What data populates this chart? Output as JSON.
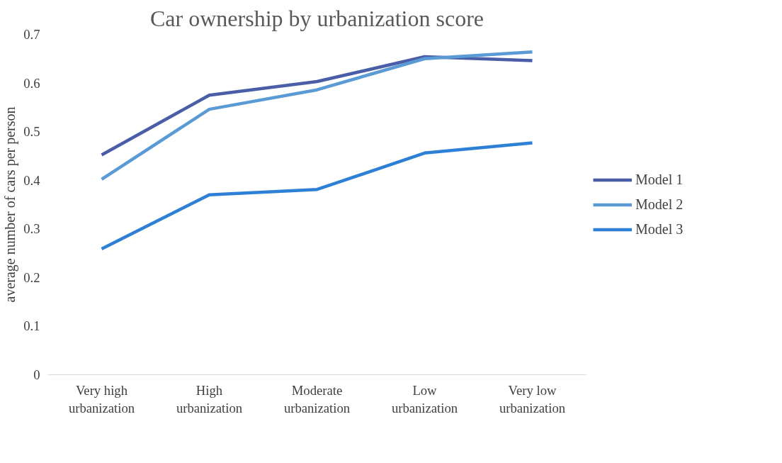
{
  "chart_data": {
    "type": "line",
    "title": "Car ownership by urbanization score",
    "ylabel": "average number of cars per person",
    "categories": [
      "Very high\nurbanization",
      "High\nurbanization",
      "Moderate\nurbanization",
      "Low\nurbanization",
      "Very low\nurbanization"
    ],
    "series": [
      {
        "name": "Model 1",
        "color": "#4a5ea8",
        "values": [
          0.452,
          0.575,
          0.603,
          0.654,
          0.646
        ]
      },
      {
        "name": "Model 2",
        "color": "#5b9bd5",
        "values": [
          0.402,
          0.546,
          0.586,
          0.65,
          0.664
        ]
      },
      {
        "name": "Model 3",
        "color": "#2e80d6",
        "values": [
          0.259,
          0.37,
          0.381,
          0.456,
          0.477
        ]
      }
    ],
    "ylim": [
      0,
      0.7
    ],
    "yticks": [
      0,
      0.1,
      0.2,
      0.3,
      0.4,
      0.5,
      0.6,
      0.7
    ],
    "grid": false,
    "legend": "right",
    "marker": "none",
    "line_style": "solid"
  }
}
